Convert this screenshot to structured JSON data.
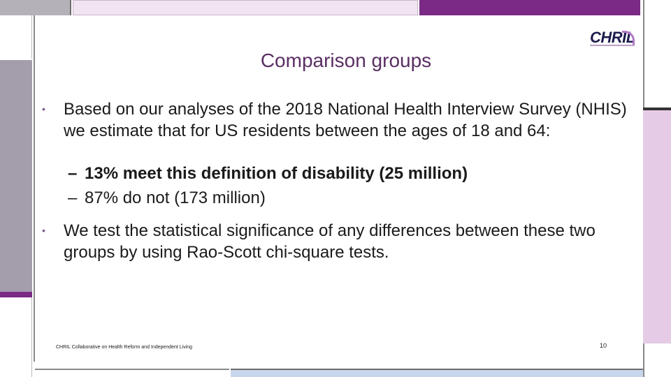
{
  "logo": {
    "text": "CHRIL"
  },
  "slide": {
    "title": "Comparison groups",
    "bullets": [
      {
        "text": "Based on our analyses of the 2018 National Health Interview Survey (NHIS) we estimate that for US residents between the ages of 18 and 64:"
      },
      {
        "text": "We test the statistical significance of any differences between these two groups by using Rao-Scott chi-square tests."
      }
    ],
    "subbullets": [
      {
        "text": "13% meet this definition of disability (25 million)"
      },
      {
        "text": "87% do not (173 million)"
      }
    ],
    "bullet_marker": "•",
    "dash_marker": "–",
    "footer": "CHRIL Collaborative on Health Reform and Independent Living",
    "page_number": "10"
  },
  "colors": {
    "title": "#5a2f63",
    "accent_purple": "#7b2a86",
    "lavender": "#e6cbe6",
    "gray": "#b5b1b8"
  }
}
